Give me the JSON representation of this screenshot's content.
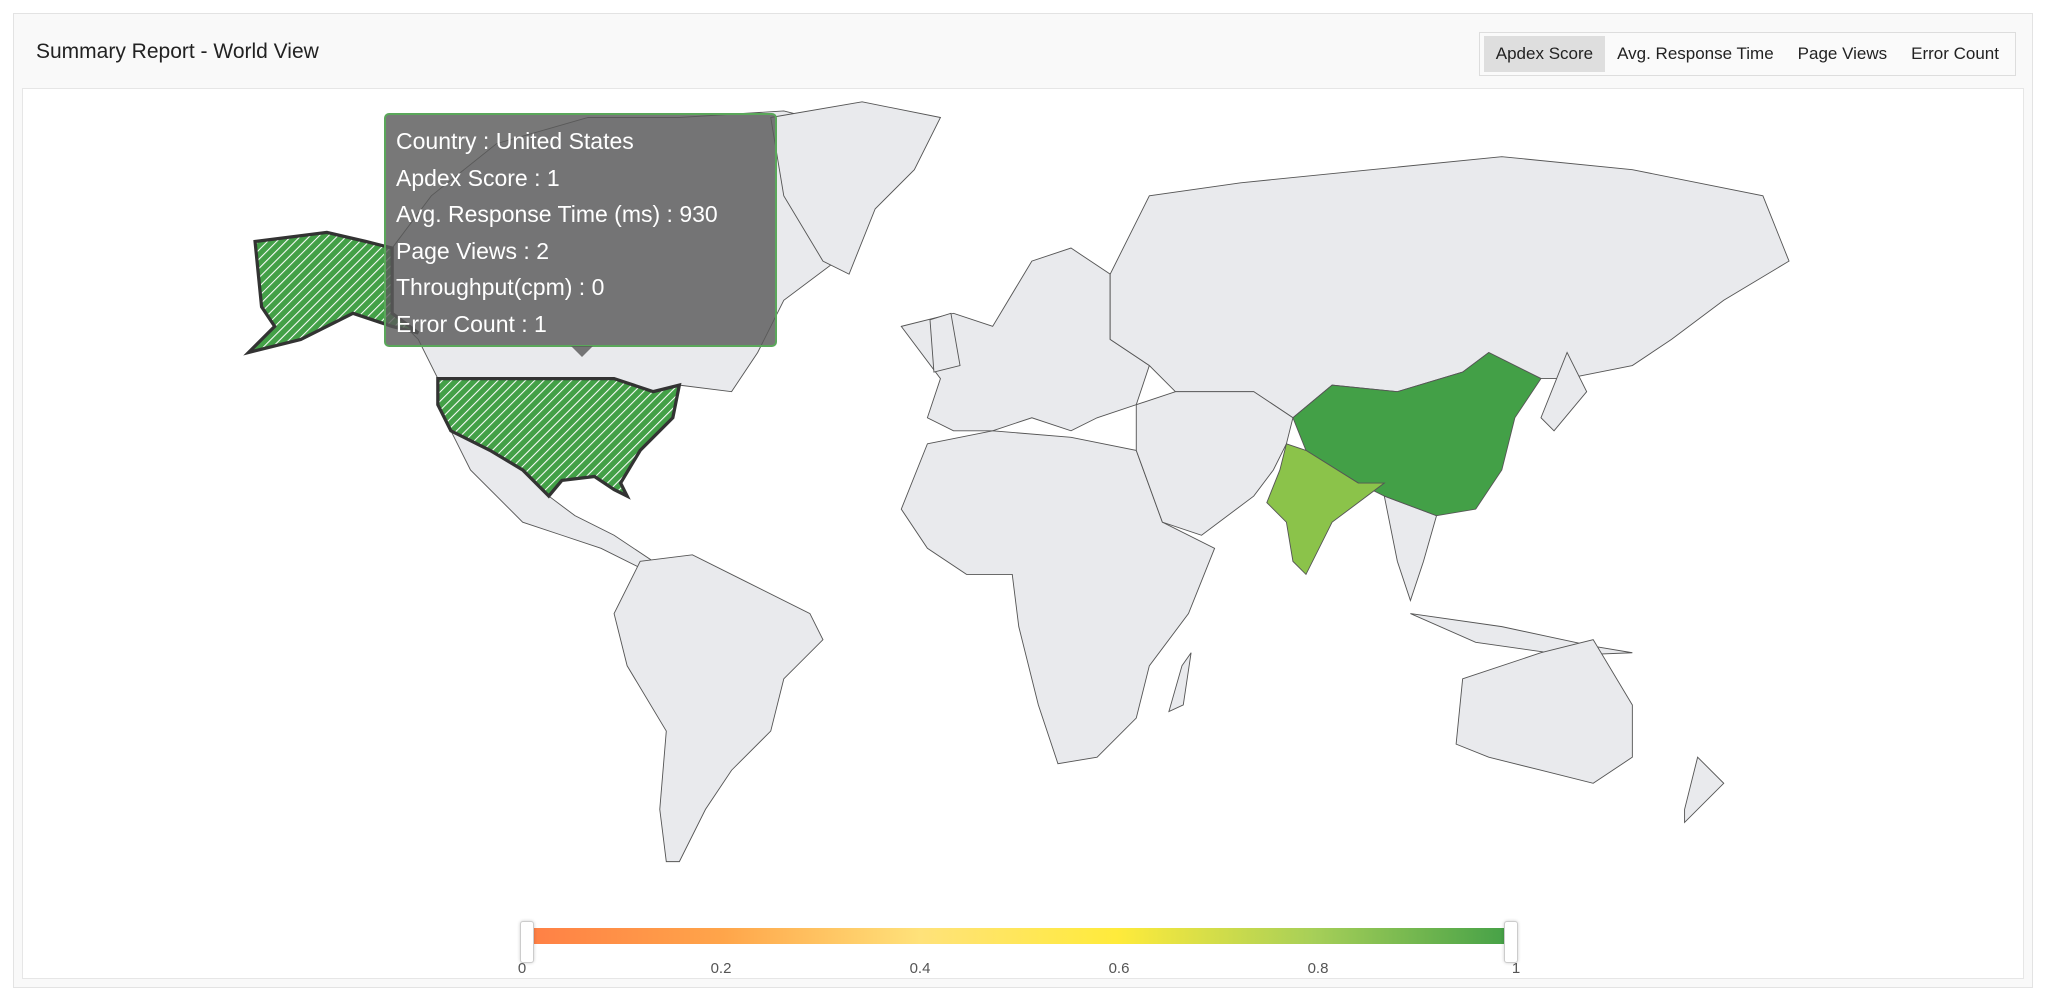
{
  "header": {
    "title": "Summary Report - World View"
  },
  "metric_tabs": [
    {
      "label": "Apdex Score",
      "active": true
    },
    {
      "label": "Avg. Response Time",
      "active": false
    },
    {
      "label": "Page Views",
      "active": false
    },
    {
      "label": "Error Count",
      "active": false
    }
  ],
  "tooltip": {
    "lines": [
      "Country : United States",
      "Apdex Score : 1",
      "Avg. Response Time (ms) : 930",
      "Page Views : 2",
      "Throughput(cpm) : 0",
      "Error Count : 1"
    ]
  },
  "highlighted_countries": [
    {
      "name": "United States",
      "value": 1,
      "color": "#43a047",
      "hovered": true
    },
    {
      "name": "China",
      "value": 1,
      "color": "#43a047"
    },
    {
      "name": "India",
      "value": 0.85,
      "color": "#8bc34a"
    }
  ],
  "colors": {
    "land": "#e9eaed",
    "border": "#555555",
    "low": "#ff7f45",
    "mid": "#ffeb3b",
    "high": "#43a047"
  },
  "legend": {
    "min": 0,
    "max": 1,
    "range_selected": [
      0,
      1
    ],
    "ticks": [
      "0",
      "0.2",
      "0.4",
      "0.6",
      "0.8",
      "1"
    ]
  }
}
